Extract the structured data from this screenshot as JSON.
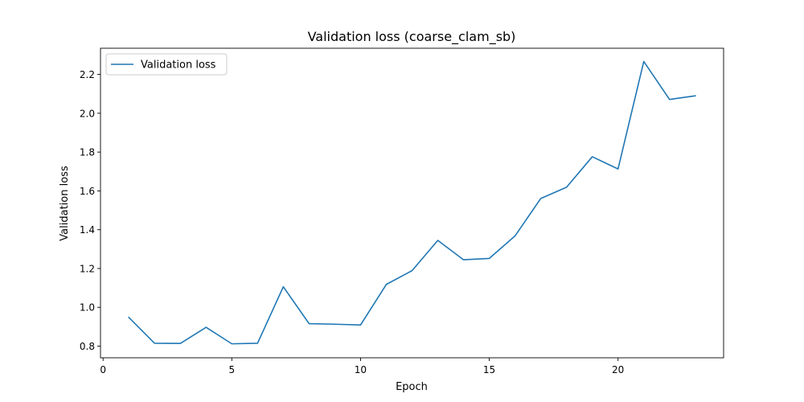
{
  "chart_data": {
    "type": "line",
    "title": "Validation loss (coarse_clam_sb)",
    "xlabel": "Epoch",
    "ylabel": "Validation loss",
    "xlim": [
      -0.1,
      24.1
    ],
    "ylim": [
      0.74,
      2.335
    ],
    "xticks": [
      0,
      5,
      10,
      15,
      20
    ],
    "yticks": [
      0.8,
      1.0,
      1.2,
      1.4,
      1.6,
      1.8,
      2.0,
      2.2
    ],
    "xtick_labels": [
      "0",
      "5",
      "10",
      "15",
      "20"
    ],
    "ytick_labels": [
      "0.8",
      "1.0",
      "1.2",
      "1.4",
      "1.6",
      "1.8",
      "2.0",
      "2.2"
    ],
    "grid": false,
    "legend": "upper-left",
    "series": [
      {
        "name": "Validation loss",
        "color": "#1f77b4",
        "x": [
          1,
          2,
          3,
          4,
          5,
          6,
          7,
          8,
          9,
          10,
          11,
          12,
          13,
          14,
          15,
          16,
          17,
          18,
          19,
          20,
          21,
          22,
          23
        ],
        "values": [
          0.948,
          0.815,
          0.814,
          0.897,
          0.812,
          0.815,
          1.106,
          0.916,
          0.913,
          0.909,
          1.118,
          1.189,
          1.345,
          1.245,
          1.252,
          1.368,
          1.561,
          1.619,
          1.776,
          1.713,
          2.267,
          2.071,
          2.09
        ]
      }
    ]
  }
}
